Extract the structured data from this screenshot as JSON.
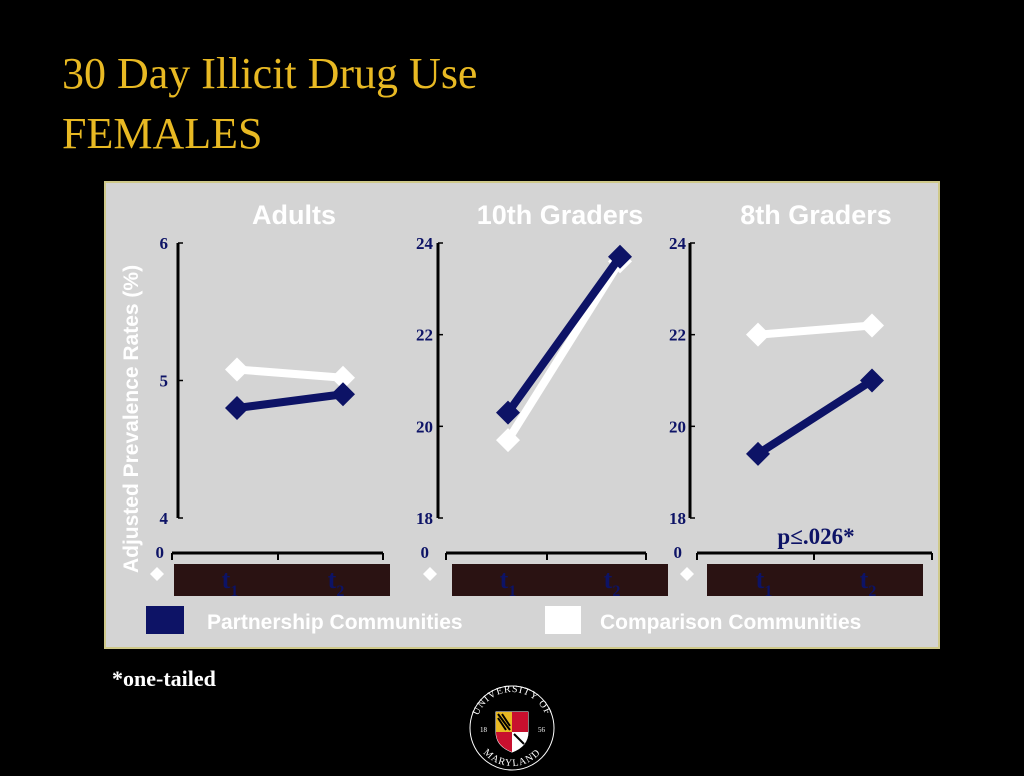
{
  "title": "30 Day Illicit Drug Use",
  "subtitle": "FEMALES",
  "footnote": "*one-tailed",
  "logo": {
    "top_text": "UNIVERSITY OF",
    "bottom_text": "MARYLAND",
    "year_left": "18",
    "year_right": "56"
  },
  "colors": {
    "partnership": "#0d1366",
    "comparison": "#ffffff",
    "title": "#e8b923",
    "axis_text": "#0d1366",
    "time_bar": "#2a1212"
  },
  "chart_data": [
    {
      "type": "line",
      "title": "Adults",
      "ylabel": "Adjusted Prevalence Rates (%)",
      "x": [
        "t1",
        "t2"
      ],
      "ylim": [
        4,
        6
      ],
      "yticks": [
        "4",
        "5",
        "6"
      ],
      "baseline_label": "0",
      "annotation": "",
      "series": [
        {
          "name": "Partnership Communities",
          "values": [
            4.8,
            4.9
          ]
        },
        {
          "name": "Comparison Communities",
          "values": [
            5.08,
            5.02
          ]
        }
      ]
    },
    {
      "type": "line",
      "title": "10th Graders",
      "ylabel": "",
      "x": [
        "t1",
        "t2"
      ],
      "ylim": [
        18,
        24
      ],
      "yticks": [
        "18",
        "20",
        "22",
        "24"
      ],
      "baseline_label": "0",
      "annotation": "",
      "series": [
        {
          "name": "Partnership Communities",
          "values": [
            20.3,
            23.7
          ]
        },
        {
          "name": "Comparison Communities",
          "values": [
            19.7,
            23.6
          ]
        }
      ]
    },
    {
      "type": "line",
      "title": "8th Graders",
      "ylabel": "",
      "x": [
        "t1",
        "t2"
      ],
      "ylim": [
        18,
        24
      ],
      "yticks": [
        "18",
        "20",
        "22",
        "24"
      ],
      "baseline_label": "0",
      "annotation": "p≤.026*",
      "series": [
        {
          "name": "Partnership Communities",
          "values": [
            19.4,
            21.0
          ]
        },
        {
          "name": "Comparison Communities",
          "values": [
            22.0,
            22.2
          ]
        }
      ]
    }
  ],
  "legend": [
    {
      "label": "Partnership Communities",
      "color": "#0d1366"
    },
    {
      "label": "Comparison Communities",
      "color": "#ffffff"
    }
  ]
}
